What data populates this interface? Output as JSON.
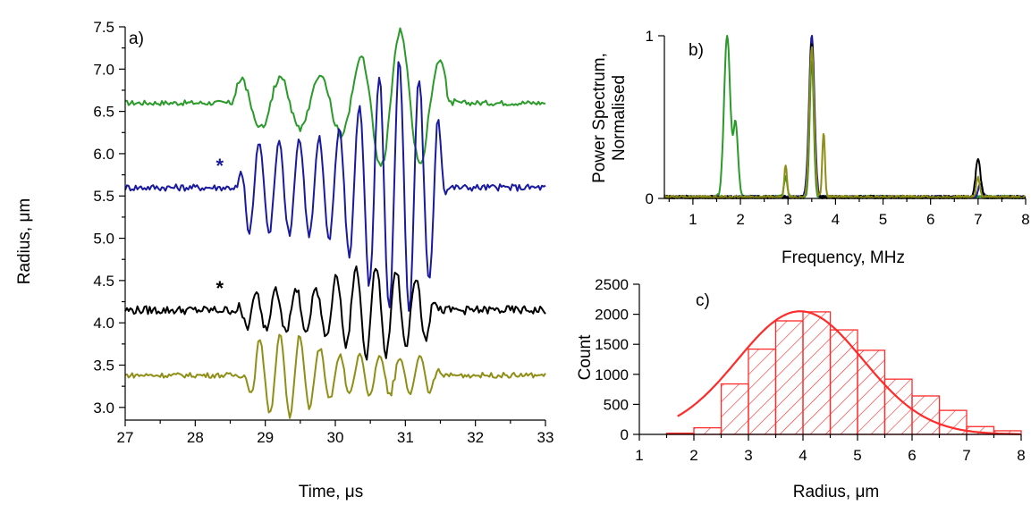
{
  "chart_data": [
    {
      "panel": "a)",
      "type": "line",
      "xlabel": "Time, μs",
      "ylabel": "Radius, μm",
      "xlim": [
        27,
        33
      ],
      "ylim": [
        2.85,
        7.5
      ],
      "xticks": [
        27,
        28,
        29,
        30,
        31,
        32,
        33
      ],
      "yticks": [
        3.0,
        3.5,
        4.0,
        4.5,
        5.0,
        5.5,
        6.0,
        6.5,
        7.0,
        7.5
      ],
      "ytick_labels": [
        "3.0",
        "3.5",
        "4.0",
        "4.5",
        "5.0",
        "5.5",
        "6.0",
        "6.5",
        "7.0",
        "7.5"
      ],
      "annotations": [
        {
          "text": "*",
          "x": 28.35,
          "y": 5.78,
          "color": "#1a1aa0"
        },
        {
          "text": "*",
          "x": 28.35,
          "y": 4.33,
          "color": "#000000"
        }
      ],
      "series": [
        {
          "color": "#2a9a2a",
          "base": 6.6,
          "noise": 0.03,
          "onset": 28.5,
          "offset": 31.7,
          "freq": 1.75,
          "amp": 0.3,
          "peak_t": 30.9,
          "peak_amp": 0.55
        },
        {
          "color": "#1a1aa0",
          "base": 5.6,
          "noise": 0.04,
          "onset": 28.6,
          "offset": 31.6,
          "freq": 3.5,
          "amp": 0.55,
          "peak_t": 30.9,
          "peak_amp": 0.95
        },
        {
          "color": "#000000",
          "base": 4.15,
          "noise": 0.05,
          "onset": 28.6,
          "offset": 31.5,
          "freq": 3.5,
          "amp": 0.25,
          "peak_t": 30.6,
          "peak_amp": 0.3
        },
        {
          "color": "#8f8f18",
          "base": 3.38,
          "noise": 0.03,
          "onset": 28.7,
          "offset": 31.5,
          "freq": 3.5,
          "amp": 0.22,
          "peak_t": 29.2,
          "peak_amp": 0.28
        }
      ]
    },
    {
      "panel": "b)",
      "type": "line",
      "xlabel": "Frequency, MHz",
      "ylabel": "Power Spectrum, Normalised",
      "ylabel_lines": [
        "Power Spectrum,",
        "Normalised"
      ],
      "xlim": [
        0.4,
        8
      ],
      "ylim": [
        0,
        1
      ],
      "xticks": [
        1,
        2,
        3,
        4,
        5,
        6,
        7,
        8
      ],
      "yticks": [
        0,
        1
      ],
      "series": [
        {
          "color": "#2a9a2a",
          "peaks": [
            [
              1.72,
              1.0,
              0.09
            ],
            [
              1.9,
              0.45,
              0.07
            ],
            [
              2.95,
              0.12,
              0.05
            ],
            [
              3.5,
              0.85,
              0.06
            ]
          ]
        },
        {
          "color": "#1a1aa0",
          "peaks": [
            [
              3.5,
              1.0,
              0.08
            ],
            [
              7.05,
              0.08,
              0.06
            ]
          ]
        },
        {
          "color": "#000000",
          "peaks": [
            [
              3.5,
              0.95,
              0.07
            ],
            [
              7.0,
              0.24,
              0.07
            ]
          ]
        },
        {
          "color": "#8f8f18",
          "peaks": [
            [
              2.95,
              0.2,
              0.04
            ],
            [
              3.5,
              0.92,
              0.07
            ],
            [
              3.75,
              0.4,
              0.04
            ],
            [
              7.0,
              0.12,
              0.05
            ]
          ]
        }
      ]
    },
    {
      "panel": "c)",
      "type": "bar",
      "xlabel": "Radius, μm",
      "ylabel": "Count",
      "xlim": [
        1,
        8
      ],
      "ylim": [
        0,
        2500
      ],
      "xticks": [
        1,
        2,
        3,
        4,
        5,
        6,
        7,
        8
      ],
      "yticks": [
        0,
        500,
        1000,
        1500,
        2000,
        2500
      ],
      "color": "#ff2a2a",
      "bin_width": 0.5,
      "bin_starts": [
        1.5,
        2.0,
        2.5,
        3.0,
        3.5,
        4.0,
        4.5,
        5.0,
        5.5,
        6.0,
        6.5,
        7.0,
        7.5
      ],
      "values": [
        20,
        110,
        840,
        1420,
        1890,
        2040,
        1740,
        1400,
        920,
        640,
        400,
        130,
        60
      ],
      "fit": {
        "type": "gaussian",
        "center": 3.95,
        "sigma": 1.15,
        "height": 2050
      }
    }
  ]
}
